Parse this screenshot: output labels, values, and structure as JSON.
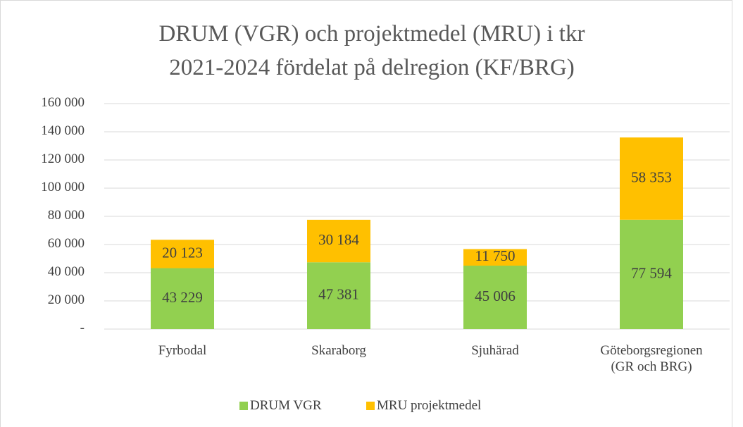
{
  "chart_data": {
    "type": "stacked_bar",
    "title": "DRUM (VGR) och projektmedel (MRU) i tkr\n2021-2024 fördelat på delregion (KF/BRG)",
    "categories": [
      "Fyrbodal",
      "Skaraborg",
      "Sjuhärad",
      "Göteborgsregionen\n(GR och BRG)"
    ],
    "series": [
      {
        "name": "DRUM VGR",
        "color": "#92d050",
        "values": [
          43229,
          47381,
          45006,
          77594
        ],
        "value_labels": [
          "43 229",
          "47 381",
          "45 006",
          "77 594"
        ]
      },
      {
        "name": "MRU projektmedel",
        "color": "#ffc000",
        "values": [
          20123,
          30184,
          11750,
          58353
        ],
        "value_labels": [
          "20 123",
          "30 184",
          "11 750",
          "58 353"
        ]
      }
    ],
    "ylim": [
      0,
      160000
    ],
    "yticks": [
      {
        "value": 0,
        "label": "-"
      },
      {
        "value": 20000,
        "label": "20 000"
      },
      {
        "value": 40000,
        "label": "40 000"
      },
      {
        "value": 60000,
        "label": "60 000"
      },
      {
        "value": 80000,
        "label": "80 000"
      },
      {
        "value": 100000,
        "label": "100 000"
      },
      {
        "value": 120000,
        "label": "120 000"
      },
      {
        "value": 140000,
        "label": "140 000"
      },
      {
        "value": 160000,
        "label": "160 000"
      }
    ],
    "grid": true,
    "legend": "bottom"
  }
}
